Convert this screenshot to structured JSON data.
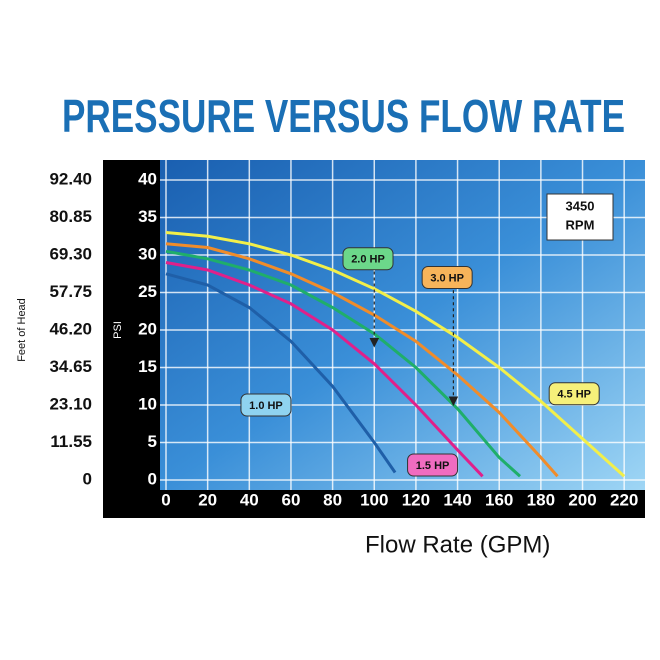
{
  "chart_data": {
    "type": "line",
    "title": "PRESSURE VERSUS FLOW RATE",
    "annotation": [
      "3450",
      "RPM"
    ],
    "x_label": "Flow Rate (GPM)",
    "y_label": "PSI",
    "y2_label": "Feet of Head",
    "xlim": [
      0,
      230
    ],
    "xticks": [
      0,
      20,
      40,
      60,
      80,
      100,
      120,
      140,
      160,
      180,
      200,
      220
    ],
    "ylim": [
      0,
      42
    ],
    "yticks": [
      0,
      5,
      10,
      15,
      20,
      25,
      30,
      35,
      40
    ],
    "y2lim": [
      0,
      97.02
    ],
    "y2ticks": [
      0,
      11.55,
      {
        "value": 23.1,
        "label": "23.10"
      },
      34.65,
      {
        "value": 46.2,
        "label": "46.20"
      },
      57.75,
      {
        "value": 69.3,
        "label": "69.30"
      },
      80.85,
      {
        "value": 92.4,
        "label": "92.40"
      }
    ],
    "grid": true,
    "series": [
      {
        "name": "1.0 HP",
        "color": "#1f5fa8",
        "tag_color": "#8fd3f0",
        "x": [
          0,
          20,
          40,
          60,
          80,
          100,
          110
        ],
        "values": [
          27.5,
          26,
          23,
          18.5,
          12.5,
          5,
          1
        ]
      },
      {
        "name": "1.5 HP",
        "color": "#e0208a",
        "tag_color": "#f06cc0",
        "x": [
          0,
          20,
          40,
          60,
          80,
          100,
          120,
          140,
          152
        ],
        "values": [
          29,
          28,
          26,
          23.5,
          20,
          15.5,
          10,
          4,
          0.5
        ]
      },
      {
        "name": "2.0 HP",
        "color": "#1fae6a",
        "tag_color": "#6cd88a",
        "x": [
          0,
          20,
          40,
          60,
          80,
          100,
          120,
          140,
          160,
          170
        ],
        "values": [
          30.5,
          29.5,
          28,
          26,
          23,
          19.5,
          15,
          9.5,
          3,
          0.5
        ]
      },
      {
        "name": "3.0 HP",
        "color": "#f08c2a",
        "tag_color": "#f7b45a",
        "x": [
          0,
          20,
          40,
          60,
          80,
          100,
          120,
          140,
          160,
          180,
          188
        ],
        "values": [
          31.5,
          31,
          29.5,
          27.5,
          25,
          22,
          18.5,
          14,
          9,
          3,
          0.5
        ]
      },
      {
        "name": "4.5 HP",
        "color": "#f2ef4a",
        "tag_color": "#f6f07a",
        "x": [
          0,
          20,
          40,
          60,
          80,
          100,
          120,
          140,
          160,
          180,
          200,
          220
        ],
        "values": [
          33,
          32.5,
          31.5,
          30,
          28,
          25.5,
          22.5,
          19,
          15,
          10.5,
          5.5,
          0.5
        ]
      }
    ]
  }
}
